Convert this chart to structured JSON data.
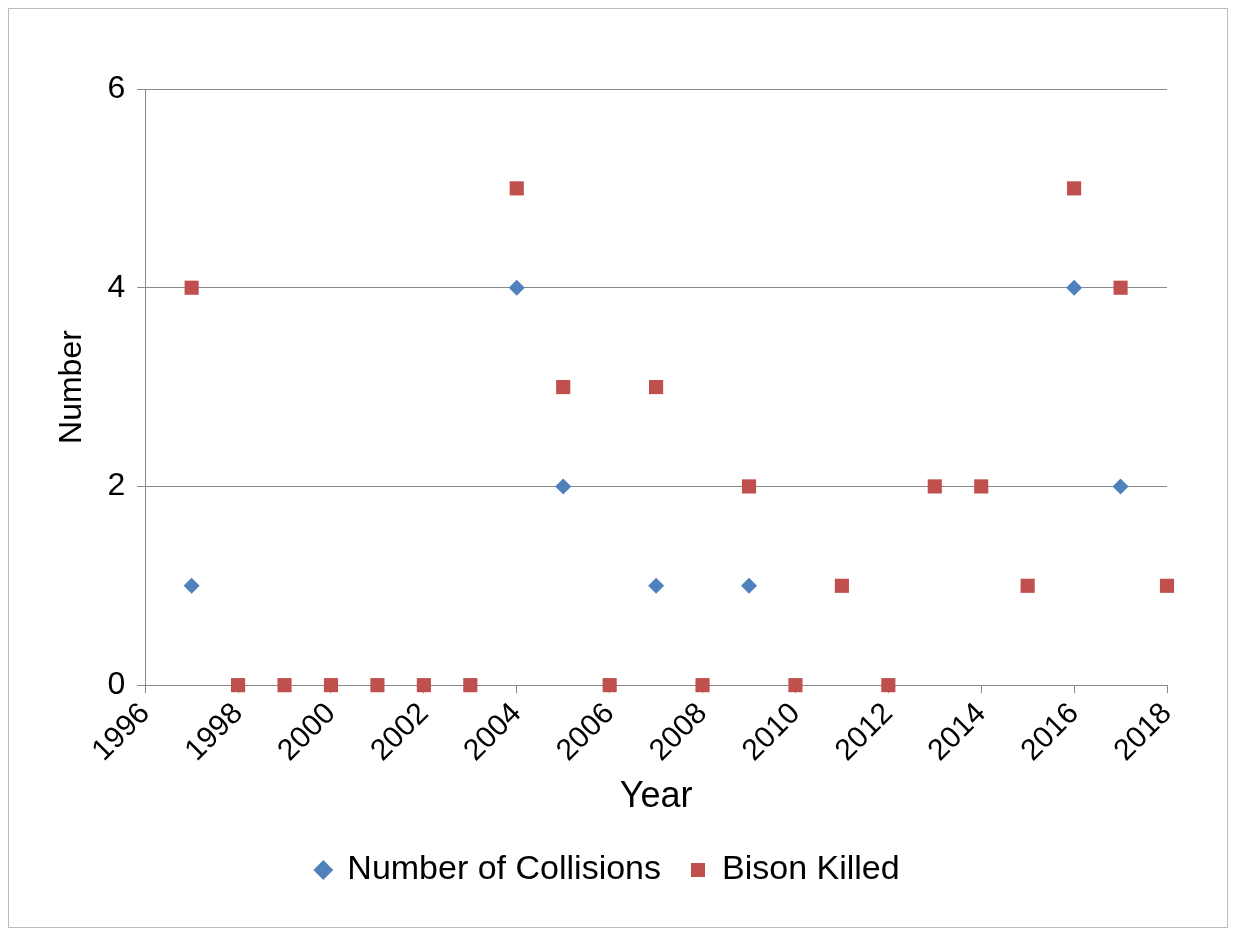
{
  "chart_data": {
    "type": "scatter",
    "xlabel": "Year",
    "ylabel": "Number",
    "xlim": [
      1996,
      2018
    ],
    "xticks": [
      1996,
      1998,
      2000,
      2002,
      2004,
      2006,
      2008,
      2010,
      2012,
      2014,
      2016,
      2018
    ],
    "ylim": [
      0,
      6
    ],
    "yticks": [
      0,
      2,
      4,
      6
    ],
    "grid": "y",
    "legend": "bottom",
    "series": [
      {
        "name": "Number of Collisions",
        "color": "#4f81bd",
        "marker": "diamond",
        "x": [
          1997,
          2004,
          2005,
          2007,
          2009,
          2016,
          2017
        ],
        "values": [
          1,
          4,
          2,
          1,
          1,
          4,
          2
        ]
      },
      {
        "name": "Bison Killed",
        "color": "#c0504d",
        "marker": "square",
        "x": [
          1997,
          1998,
          1999,
          2000,
          2001,
          2002,
          2003,
          2004,
          2005,
          2006,
          2007,
          2008,
          2009,
          2010,
          2011,
          2012,
          2013,
          2014,
          2015,
          2016,
          2017,
          2018
        ],
        "values": [
          4,
          0,
          0,
          0,
          0,
          0,
          0,
          5,
          3,
          0,
          3,
          0,
          2,
          0,
          1,
          0,
          2,
          2,
          1,
          5,
          4,
          1
        ]
      }
    ]
  }
}
